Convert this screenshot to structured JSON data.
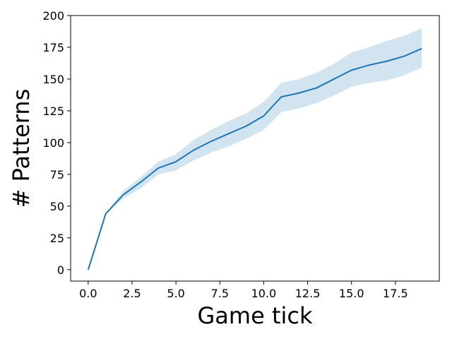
{
  "chart_data": {
    "type": "line",
    "title": "",
    "xlabel": "Game tick",
    "ylabel": "# Patterns",
    "xlim": [
      -1,
      20
    ],
    "ylim": [
      -9,
      200
    ],
    "xticks": [
      0.0,
      2.5,
      5.0,
      7.5,
      10.0,
      12.5,
      15.0,
      17.5
    ],
    "xtick_labels": [
      "0.0",
      "2.5",
      "5.0",
      "7.5",
      "10.0",
      "12.5",
      "15.0",
      "17.5"
    ],
    "yticks": [
      0,
      25,
      50,
      75,
      100,
      125,
      150,
      175,
      200
    ],
    "ytick_labels": [
      "0",
      "25",
      "50",
      "75",
      "100",
      "125",
      "150",
      "175",
      "200"
    ],
    "grid": false,
    "colors": {
      "line": "#1f77b4",
      "band": "#1f77b4",
      "band_opacity": 0.2
    },
    "series": [
      {
        "x": [
          0,
          1,
          2,
          3,
          4,
          5,
          6,
          7,
          8,
          9,
          10,
          11,
          12,
          13,
          14,
          15,
          16,
          17,
          18,
          19
        ],
        "y": [
          0,
          44,
          59,
          69,
          80,
          85,
          94,
          101,
          107,
          113,
          121,
          136,
          139,
          143,
          150,
          157,
          161,
          164,
          168,
          174
        ],
        "lower": [
          0,
          44,
          56,
          64,
          75,
          78,
          86,
          92,
          97,
          103,
          110,
          124,
          127,
          131,
          137,
          144,
          147,
          149,
          153,
          159
        ],
        "upper": [
          0,
          44,
          62,
          73,
          85,
          91,
          102,
          110,
          117,
          123,
          132,
          147,
          150,
          155,
          162,
          171,
          175,
          180,
          184,
          190
        ]
      }
    ]
  }
}
